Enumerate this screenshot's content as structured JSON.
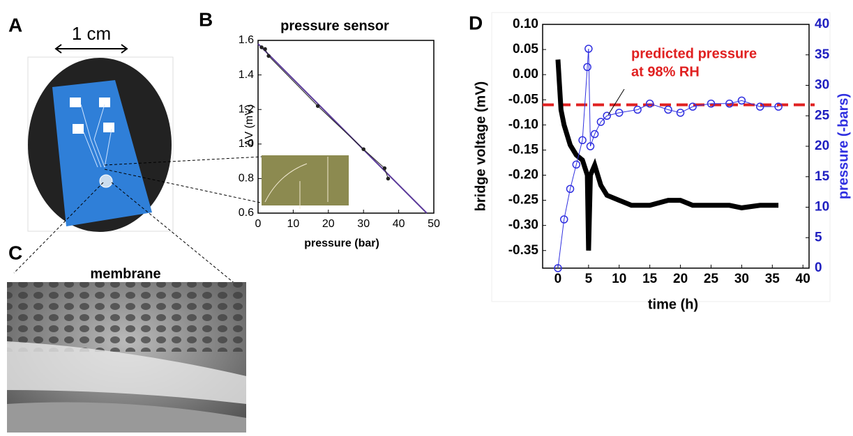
{
  "panels": {
    "A": {
      "label": "A",
      "scale": "1 cm"
    },
    "C": {
      "label": "C",
      "title": "membrane"
    }
  },
  "chart_data": [
    {
      "type": "line",
      "label": "B",
      "title": "pressure sensor",
      "xlabel": "pressure (bar)",
      "ylabel": "ΔV (mV)",
      "xlim": [
        0,
        50
      ],
      "xticks": [
        0,
        10,
        20,
        30,
        40,
        50
      ],
      "ylim": [
        0.6,
        1.6
      ],
      "yticks": [
        0.6,
        0.8,
        {
          "value": 1,
          "label": "1.0"
        },
        1.2,
        1.4,
        1.6
      ],
      "series": [
        {
          "name": "fit",
          "color": "#5b3a9a",
          "x": [
            0,
            48
          ],
          "values": [
            1.58,
            0.6
          ]
        },
        {
          "name": "data",
          "color": "#222222",
          "marker": true,
          "x": [
            1,
            2,
            3,
            17,
            30,
            36,
            37
          ],
          "values": [
            1.56,
            1.55,
            1.51,
            1.22,
            0.97,
            0.86,
            0.8
          ]
        }
      ]
    },
    {
      "type": "line",
      "label": "D",
      "xlabel": "time (h)",
      "ylabel": "bridge voltage (mV)",
      "y2label": "pressure (-bars)",
      "xlim": [
        -2.5,
        41
      ],
      "xticks": [
        0,
        5,
        10,
        15,
        20,
        25,
        30,
        35,
        40
      ],
      "ylim": [
        -0.385,
        0.1
      ],
      "yticks": [
        {
          "value": 0.1,
          "label": "0.10"
        },
        {
          "value": 0.05,
          "label": "0.05"
        },
        {
          "value": 0,
          "label": "0.00"
        },
        {
          "value": -0.05,
          "label": "-0.05"
        },
        {
          "value": -0.1,
          "label": "-0.10"
        },
        {
          "value": -0.15,
          "label": "-0.15"
        },
        {
          "value": -0.2,
          "label": "-0.20"
        },
        {
          "value": -0.25,
          "label": "-0.25"
        },
        {
          "value": -0.3,
          "label": "-0.30"
        },
        {
          "value": -0.35,
          "label": "-0.35"
        }
      ],
      "y2lim": [
        0,
        40
      ],
      "y2ticks": [
        0,
        5,
        10,
        15,
        20,
        25,
        30,
        35,
        40
      ],
      "annotation": [
        "predicted pressure",
        "at 98% RH"
      ],
      "reference_line": {
        "value": -0.06,
        "color": "#e02020"
      },
      "series": [
        {
          "name": "bridge voltage",
          "color": "#000000",
          "x": [
            0,
            0.5,
            1,
            2,
            3,
            4,
            4.8,
            5,
            5.3,
            6,
            7,
            8,
            10,
            12,
            15,
            18,
            20,
            22,
            25,
            28,
            30,
            33,
            36
          ],
          "values": [
            0.03,
            -0.07,
            -0.1,
            -0.14,
            -0.16,
            -0.17,
            -0.2,
            -0.35,
            -0.2,
            -0.18,
            -0.22,
            -0.24,
            -0.25,
            -0.26,
            -0.26,
            -0.25,
            -0.25,
            -0.26,
            -0.26,
            -0.26,
            -0.265,
            -0.26,
            -0.26
          ]
        },
        {
          "name": "pressure",
          "color": "#3030e0",
          "axis": "y2",
          "marker": true,
          "x": [
            0,
            1,
            2,
            3,
            4,
            4.8,
            5,
            5.3,
            6,
            7,
            8,
            10,
            13,
            15,
            18,
            20,
            22,
            25,
            28,
            30,
            33,
            36
          ],
          "values": [
            0,
            8,
            13,
            17,
            21,
            33,
            36,
            20,
            22,
            24,
            25,
            25.5,
            26,
            27,
            26,
            25.5,
            26.5,
            27,
            27,
            27.5,
            26.5,
            26.5
          ]
        }
      ]
    }
  ]
}
